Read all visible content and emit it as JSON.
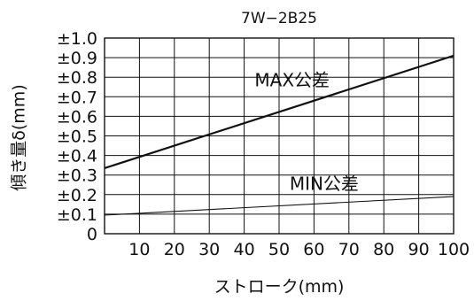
{
  "chart_data": {
    "type": "line",
    "title": "7W−2B25",
    "xlabel": "ストローク(mm)",
    "ylabel": "傾き量δ(mm)",
    "xlim": [
      0,
      100
    ],
    "ylim": [
      0,
      1.0
    ],
    "x_ticks": [
      10,
      20,
      30,
      40,
      50,
      60,
      70,
      80,
      90,
      100
    ],
    "x_tick_labels": [
      "10",
      "20",
      "30",
      "40",
      "50",
      "60",
      "70",
      "80",
      "90",
      "100"
    ],
    "y_ticks": [
      0,
      0.1,
      0.2,
      0.3,
      0.4,
      0.5,
      0.6,
      0.7,
      0.8,
      0.9,
      1.0
    ],
    "y_tick_labels": [
      "0",
      "±0.1",
      "±0.2",
      "±0.3",
      "±0.4",
      "±0.5",
      "±0.6",
      "±0.7",
      "±0.8",
      "±0.9",
      "±1.0"
    ],
    "grid": true,
    "series": [
      {
        "name": "MAX公差",
        "x": [
          0,
          100
        ],
        "y": [
          0.335,
          0.91
        ],
        "color": "#111111"
      },
      {
        "name": "MIN公差",
        "x": [
          0,
          100
        ],
        "y": [
          0.095,
          0.19
        ],
        "color": "#111111"
      }
    ]
  }
}
